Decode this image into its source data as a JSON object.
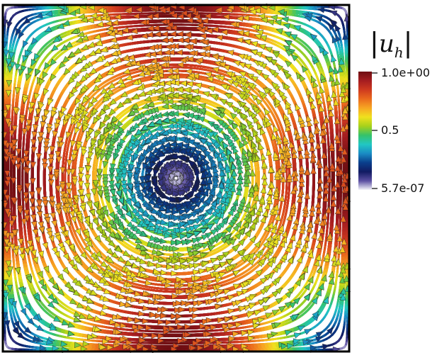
{
  "chart_data": {
    "type": "streamline",
    "field": "u_h = (sin(pi x) cos(pi y), -cos(pi x) sin(pi y))",
    "domain": {
      "x": [
        0,
        1
      ],
      "y": [
        0,
        1
      ]
    },
    "colorbar": {
      "title_symbol": "u",
      "title_subscript": "h",
      "max_label": "1.0e+00",
      "mid_label": "0.5",
      "min_label": "5.7e-07",
      "range": [
        5.7e-07,
        1.0
      ],
      "colormap": [
        "#f4f4fa",
        "#5b4fa2",
        "#111b62",
        "#0a3f8c",
        "#1a8cc4",
        "#21c7c4",
        "#35c26a",
        "#a6d11b",
        "#f0e11e",
        "#f7a623",
        "#ea6a1d",
        "#cf3a1f",
        "#a51d20",
        "#6e0e12"
      ]
    }
  }
}
